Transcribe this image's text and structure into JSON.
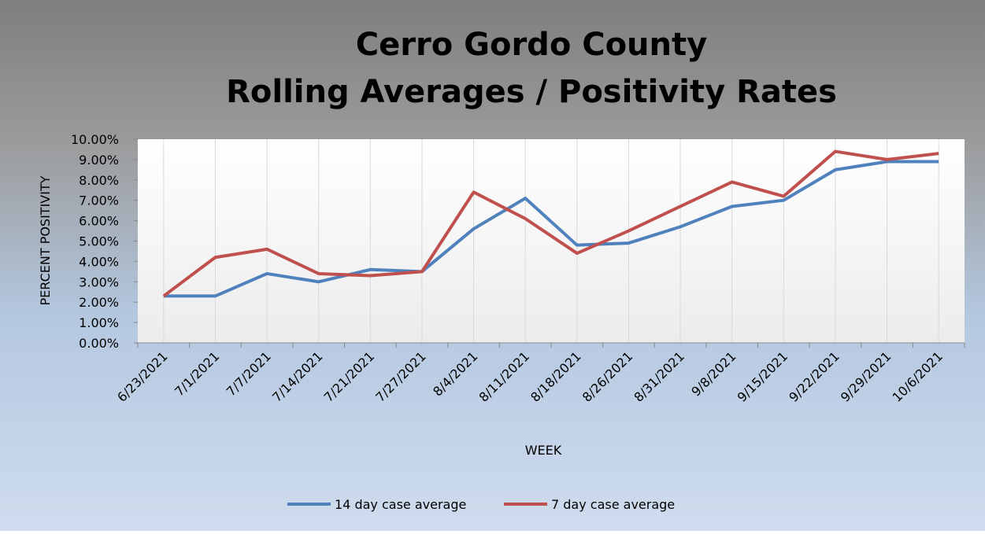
{
  "chart_data": {
    "type": "line",
    "title": [
      "Cerro Gordo County",
      "Rolling Averages / Positivity Rates"
    ],
    "x_label": "WEEK",
    "y_label": "PERCENT POSITIVITY",
    "categories": [
      "6/23/2021",
      "7/1/2021",
      "7/7/2021",
      "7/14/2021",
      "7/21/2021",
      "7/27/2021",
      "8/4/2021",
      "8/11/2021",
      "8/18/2021",
      "8/26/2021",
      "8/31/2021",
      "9/8/2021",
      "9/15/2021",
      "9/22/2021",
      "9/29/2021",
      "10/6/2021"
    ],
    "series": [
      {
        "name": "14 day case average",
        "color": "#4f81bd",
        "values": [
          2.3,
          2.3,
          3.4,
          3.0,
          3.6,
          3.5,
          5.6,
          7.1,
          4.8,
          4.9,
          5.7,
          6.7,
          7.0,
          8.5,
          8.9,
          8.9
        ]
      },
      {
        "name": "7 day case average",
        "color": "#c0504d",
        "values": [
          2.3,
          4.2,
          4.6,
          3.4,
          3.3,
          3.5,
          7.4,
          6.1,
          4.4,
          5.5,
          6.7,
          7.9,
          7.2,
          9.4,
          9.0,
          9.3
        ]
      }
    ],
    "ylim": [
      0,
      10
    ],
    "yticks": [
      {
        "value": 0,
        "label": "0.00%"
      },
      {
        "value": 1,
        "label": "1.00%"
      },
      {
        "value": 2,
        "label": "2.00%"
      },
      {
        "value": 3,
        "label": "3.00%"
      },
      {
        "value": 4,
        "label": "4.00%"
      },
      {
        "value": 5,
        "label": "5.00%"
      },
      {
        "value": 6,
        "label": "6.00%"
      },
      {
        "value": 7,
        "label": "7.00%"
      },
      {
        "value": 8,
        "label": "8.00%"
      },
      {
        "value": 9,
        "label": "9.00%"
      },
      {
        "value": 10,
        "label": "10.00%"
      }
    ],
    "x_grid": true,
    "legend": "bottom"
  }
}
